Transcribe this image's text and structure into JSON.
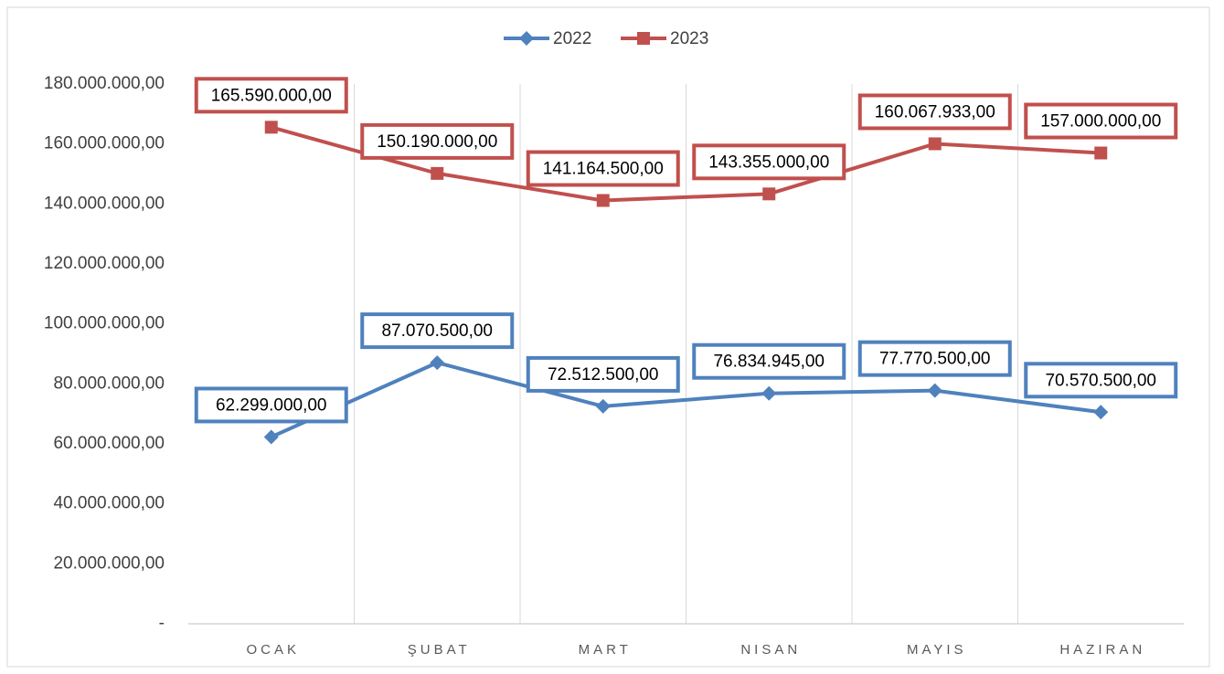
{
  "chart_data": {
    "type": "line",
    "categories": [
      "OCAK",
      "ŞUBAT",
      "MART",
      "NISAN",
      "MAYIS",
      "HAZIRAN"
    ],
    "series": [
      {
        "name": "2022",
        "color": "#4f81bd",
        "marker": "diamond",
        "values": [
          62299000,
          87070500,
          72512500,
          76834945,
          77770500,
          70570500
        ],
        "value_labels": [
          "62.299.000,00",
          "87.070.500,00",
          "72.512.500,00",
          "76.834.945,00",
          "77.770.500,00",
          "70.570.500,00"
        ]
      },
      {
        "name": "2023",
        "color": "#c0504d",
        "marker": "square",
        "values": [
          165590000,
          150190000,
          141164500,
          143355000,
          160067933,
          157000000
        ],
        "value_labels": [
          "165.590.000,00",
          "150.190.000,00",
          "141.164.500,00",
          "143.355.000,00",
          "160.067.933,00",
          "157.000.000,00"
        ]
      }
    ],
    "ylim": [
      0,
      180000000
    ],
    "yticks": [
      {
        "value": 0,
        "label": "-"
      },
      {
        "value": 20000000,
        "label": "20.000.000,00"
      },
      {
        "value": 40000000,
        "label": "40.000.000,00"
      },
      {
        "value": 60000000,
        "label": "60.000.000,00"
      },
      {
        "value": 80000000,
        "label": "80.000.000,00"
      },
      {
        "value": 100000000,
        "label": "100.000.000,00"
      },
      {
        "value": 120000000,
        "label": "120.000.000,00"
      },
      {
        "value": 140000000,
        "label": "140.000.000,00"
      },
      {
        "value": 160000000,
        "label": "160.000.000,00"
      },
      {
        "value": 180000000,
        "label": "180.000.000,00"
      }
    ],
    "legend": "top",
    "grid": "vertical"
  }
}
